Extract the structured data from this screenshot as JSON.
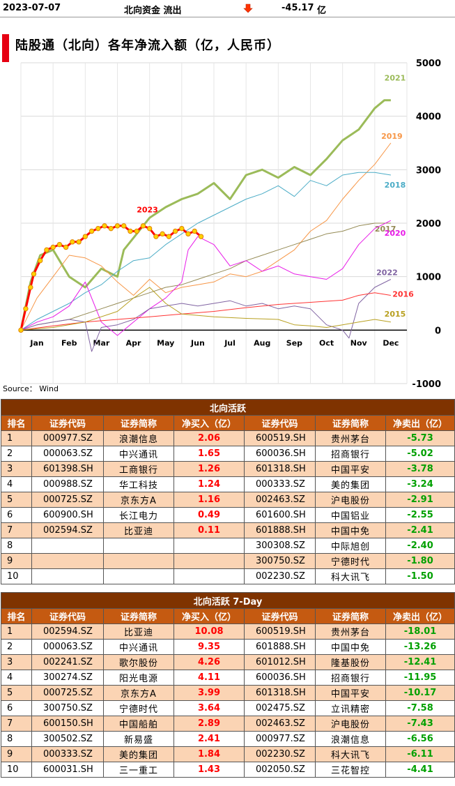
{
  "header": {
    "date": "2023-07-07",
    "label": "北向资金 流出",
    "value": "-45.17",
    "unit": "亿",
    "arrow_icon": "down-arrow-icon",
    "arrow_color": "#ff3300"
  },
  "chart_title": "陆股通（北向）各年净流入额（亿，人民币）",
  "source": "Source： Wind",
  "chart_data": {
    "type": "line",
    "title": "陆股通（北向）各年净流入额（亿，人民币）",
    "x_ticks": [
      "Jan",
      "Feb",
      "Mar",
      "Apr",
      "May",
      "Jun",
      "Jul",
      "Aug",
      "Sep",
      "Oct",
      "Nov",
      "Dec"
    ],
    "y_ticks": [
      5000,
      4000,
      3000,
      2000,
      1000,
      0,
      -1000
    ],
    "ylim": [
      -1000,
      5000
    ],
    "grid": true,
    "series": [
      {
        "name": "2021",
        "color": "#9bbb59",
        "width": 3,
        "x": [
          0,
          0.3,
          0.6,
          1,
          1.5,
          2,
          2.5,
          3,
          3.2,
          3.6,
          4,
          4.5,
          5,
          5.5,
          6,
          6.5,
          7,
          7.5,
          8,
          8.5,
          9,
          9.5,
          10,
          10.5,
          11,
          11.3,
          11.5
        ],
        "y": [
          0,
          900,
          1400,
          1500,
          1000,
          800,
          1150,
          1000,
          1500,
          1800,
          2100,
          2300,
          2450,
          2550,
          2750,
          2450,
          2900,
          3000,
          2850,
          3050,
          2900,
          3200,
          3550,
          3750,
          4150,
          4300,
          4300
        ]
      },
      {
        "name": "2019",
        "color": "#f79646",
        "width": 1,
        "x": [
          0,
          0.5,
          1,
          1.5,
          2,
          2.5,
          3,
          3.5,
          4,
          4.5,
          5,
          5.5,
          6,
          6.5,
          7,
          7.5,
          8,
          8.5,
          9,
          9.5,
          10,
          10.5,
          11,
          11.5
        ],
        "y": [
          0,
          600,
          1000,
          1400,
          1350,
          1200,
          900,
          650,
          950,
          700,
          800,
          850,
          900,
          1050,
          1000,
          1100,
          1300,
          1500,
          1850,
          2050,
          2450,
          2800,
          3100,
          3500
        ]
      },
      {
        "name": "2018",
        "color": "#4bacc6",
        "width": 1,
        "x": [
          0,
          0.5,
          1,
          1.5,
          2,
          2.5,
          3,
          3.5,
          4,
          4.5,
          5,
          5.5,
          6,
          6.5,
          7,
          7.5,
          8,
          8.5,
          9,
          9.5,
          10,
          10.5,
          11,
          11.5
        ],
        "y": [
          0,
          200,
          350,
          500,
          700,
          850,
          1100,
          1300,
          1350,
          1600,
          1800,
          2000,
          2150,
          2300,
          2450,
          2550,
          2700,
          2500,
          2800,
          2700,
          2900,
          2950,
          2950,
          2900
        ]
      },
      {
        "name": "2017",
        "color": "#948a54",
        "width": 1,
        "x": [
          0,
          0.5,
          1,
          1.5,
          2,
          2.5,
          3,
          3.5,
          4,
          4.5,
          5,
          5.5,
          6,
          6.5,
          7,
          7.5,
          8,
          8.5,
          9,
          9.5,
          10,
          10.5,
          11,
          11.5
        ],
        "y": [
          0,
          100,
          150,
          200,
          300,
          400,
          500,
          600,
          700,
          800,
          850,
          950,
          1050,
          1150,
          1300,
          1400,
          1500,
          1600,
          1700,
          1800,
          1850,
          1950,
          2000,
          2000
        ]
      },
      {
        "name": "2020",
        "color": "#e81ae8",
        "width": 1,
        "x": [
          0,
          0.5,
          1,
          1.5,
          2,
          2.5,
          3,
          3.5,
          4,
          4.5,
          5,
          5.2,
          5.5,
          6,
          6.5,
          7,
          7.5,
          8,
          8.5,
          9,
          9.5,
          10,
          10.5,
          11,
          11.5
        ],
        "y": [
          0,
          150,
          250,
          450,
          900,
          150,
          -100,
          150,
          400,
          600,
          900,
          1500,
          1750,
          1600,
          1200,
          1300,
          1100,
          1200,
          1050,
          1000,
          950,
          1150,
          1600,
          1900,
          2050
        ]
      },
      {
        "name": "2022",
        "color": "#8064a2",
        "width": 1,
        "x": [
          0,
          0.5,
          1,
          1.5,
          2,
          2.2,
          2.5,
          3,
          3.5,
          4,
          4.5,
          5,
          5.5,
          6,
          6.5,
          7,
          7.5,
          8,
          8.5,
          9,
          9.5,
          10,
          10.2,
          10.5,
          11,
          11.5
        ],
        "y": [
          0,
          100,
          150,
          200,
          150,
          -400,
          50,
          100,
          200,
          400,
          450,
          500,
          450,
          500,
          550,
          450,
          500,
          400,
          450,
          400,
          100,
          0,
          -150,
          500,
          800,
          950
        ]
      },
      {
        "name": "2016",
        "color": "#ff3333",
        "width": 1,
        "x": [
          0,
          1,
          2,
          3,
          4,
          5,
          6,
          7,
          8,
          9,
          10,
          10.5,
          11,
          11.5
        ],
        "y": [
          0,
          80,
          150,
          200,
          250,
          300,
          350,
          420,
          480,
          520,
          560,
          650,
          700,
          650
        ]
      },
      {
        "name": "2015",
        "color": "#b8a020",
        "width": 1,
        "x": [
          0,
          1,
          2,
          3,
          3.5,
          4,
          4.5,
          5,
          6,
          7,
          8,
          8.5,
          9,
          9.5,
          10,
          10.5,
          11,
          11.5
        ],
        "y": [
          0,
          50,
          150,
          350,
          600,
          800,
          500,
          300,
          250,
          220,
          200,
          100,
          80,
          50,
          100,
          150,
          200,
          150
        ]
      },
      {
        "name": "2023",
        "color": "#ff0000",
        "width": 3,
        "markers": true,
        "x": [
          0,
          0.15,
          0.3,
          0.4,
          0.6,
          0.8,
          1,
          1.2,
          1.4,
          1.6,
          1.8,
          2,
          2.2,
          2.4,
          2.6,
          2.8,
          3,
          3.2,
          3.4,
          3.6,
          3.8,
          4,
          4.2,
          4.4,
          4.6,
          4.8,
          5,
          5.2,
          5.4,
          5.6
        ],
        "y": [
          0,
          400,
          800,
          1050,
          1300,
          1500,
          1550,
          1600,
          1550,
          1650,
          1650,
          1750,
          1850,
          1900,
          1950,
          1900,
          1950,
          1950,
          1850,
          1850,
          1950,
          1900,
          1750,
          1800,
          1750,
          1850,
          1900,
          1800,
          1850,
          1750
        ]
      }
    ]
  },
  "tables": [
    {
      "title": "北向活跃",
      "columns": [
        "排名",
        "证券代码",
        "证券简称",
        "净买入（亿）",
        "证券代码",
        "证券简称",
        "净卖出（亿）"
      ],
      "rows": [
        {
          "rank": "1",
          "buy_code": "000977.SZ",
          "buy_name": "浪潮信息",
          "buy_val": "2.06",
          "sell_code": "600519.SH",
          "sell_name": "贵州茅台",
          "sell_val": "-5.73"
        },
        {
          "rank": "2",
          "buy_code": "000063.SZ",
          "buy_name": "中兴通讯",
          "buy_val": "1.65",
          "sell_code": "600036.SH",
          "sell_name": "招商银行",
          "sell_val": "-5.02"
        },
        {
          "rank": "3",
          "buy_code": "601398.SH",
          "buy_name": "工商银行",
          "buy_val": "1.26",
          "sell_code": "601318.SH",
          "sell_name": "中国平安",
          "sell_val": "-3.78"
        },
        {
          "rank": "4",
          "buy_code": "000988.SZ",
          "buy_name": "华工科技",
          "buy_val": "1.24",
          "sell_code": "000333.SZ",
          "sell_name": "美的集团",
          "sell_val": "-3.24"
        },
        {
          "rank": "5",
          "buy_code": "000725.SZ",
          "buy_name": "京东方A",
          "buy_val": "1.16",
          "sell_code": "002463.SZ",
          "sell_name": "沪电股份",
          "sell_val": "-2.91"
        },
        {
          "rank": "6",
          "buy_code": "600900.SH",
          "buy_name": "长江电力",
          "buy_val": "0.49",
          "sell_code": "601600.SH",
          "sell_name": "中国铝业",
          "sell_val": "-2.55"
        },
        {
          "rank": "7",
          "buy_code": "002594.SZ",
          "buy_name": "比亚迪",
          "buy_val": "0.11",
          "sell_code": "601888.SH",
          "sell_name": "中国中免",
          "sell_val": "-2.41"
        },
        {
          "rank": "8",
          "buy_code": "",
          "buy_name": "",
          "buy_val": "",
          "sell_code": "300308.SZ",
          "sell_name": "中际旭创",
          "sell_val": "-2.40"
        },
        {
          "rank": "9",
          "buy_code": "",
          "buy_name": "",
          "buy_val": "",
          "sell_code": "300750.SZ",
          "sell_name": "宁德时代",
          "sell_val": "-1.80"
        },
        {
          "rank": "10",
          "buy_code": "",
          "buy_name": "",
          "buy_val": "",
          "sell_code": "002230.SZ",
          "sell_name": "科大讯飞",
          "sell_val": "-1.50"
        }
      ]
    },
    {
      "title": "北向活跃 7-Day",
      "columns": [
        "排名",
        "证券代码",
        "证券简称",
        "净买入（亿）",
        "证券代码",
        "证券简称",
        "净卖出（亿）"
      ],
      "rows": [
        {
          "rank": "1",
          "buy_code": "002594.SZ",
          "buy_name": "比亚迪",
          "buy_val": "10.08",
          "sell_code": "600519.SH",
          "sell_name": "贵州茅台",
          "sell_val": "-18.01"
        },
        {
          "rank": "2",
          "buy_code": "000063.SZ",
          "buy_name": "中兴通讯",
          "buy_val": "9.35",
          "sell_code": "601888.SH",
          "sell_name": "中国中免",
          "sell_val": "-13.26"
        },
        {
          "rank": "3",
          "buy_code": "002241.SZ",
          "buy_name": "歌尔股份",
          "buy_val": "4.26",
          "sell_code": "601012.SH",
          "sell_name": "隆基股份",
          "sell_val": "-12.41"
        },
        {
          "rank": "4",
          "buy_code": "300274.SZ",
          "buy_name": "阳光电源",
          "buy_val": "4.11",
          "sell_code": "600036.SH",
          "sell_name": "招商银行",
          "sell_val": "-11.95"
        },
        {
          "rank": "5",
          "buy_code": "000725.SZ",
          "buy_name": "京东方A",
          "buy_val": "3.99",
          "sell_code": "601318.SH",
          "sell_name": "中国平安",
          "sell_val": "-10.17"
        },
        {
          "rank": "6",
          "buy_code": "300750.SZ",
          "buy_name": "宁德时代",
          "buy_val": "3.64",
          "sell_code": "002475.SZ",
          "sell_name": "立讯精密",
          "sell_val": "-7.58"
        },
        {
          "rank": "7",
          "buy_code": "600150.SH",
          "buy_name": "中国船舶",
          "buy_val": "2.89",
          "sell_code": "002463.SZ",
          "sell_name": "沪电股份",
          "sell_val": "-7.43"
        },
        {
          "rank": "8",
          "buy_code": "300502.SZ",
          "buy_name": "新易盛",
          "buy_val": "2.41",
          "sell_code": "000977.SZ",
          "sell_name": "浪潮信息",
          "sell_val": "-6.56"
        },
        {
          "rank": "9",
          "buy_code": "000333.SZ",
          "buy_name": "美的集团",
          "buy_val": "1.84",
          "sell_code": "002230.SZ",
          "sell_name": "科大讯飞",
          "sell_val": "-6.11"
        },
        {
          "rank": "10",
          "buy_code": "600031.SH",
          "buy_name": "三一重工",
          "buy_val": "1.43",
          "sell_code": "002050.SZ",
          "sell_name": "三花智控",
          "sell_val": "-4.41"
        }
      ]
    }
  ]
}
